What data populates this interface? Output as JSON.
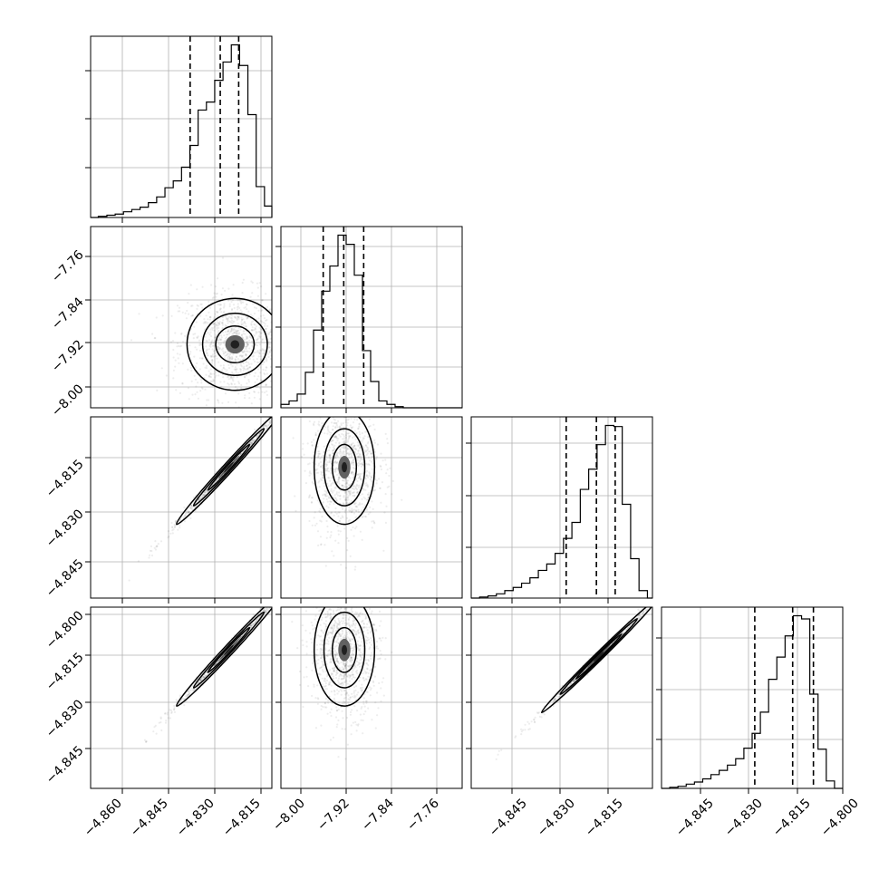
{
  "chart_data": {
    "type": "corner",
    "n_params": 4,
    "grid": true,
    "ranges": [
      [
        -4.869,
        -4.81
      ],
      [
        -8.025,
        -7.725
      ],
      [
        -4.856,
        -4.802
      ],
      [
        -4.856,
        -4.801
      ]
    ],
    "ticks": {
      "row1_y": [
        "−7.76",
        "−7.84",
        "−7.92",
        "−8.00"
      ],
      "row2_y": [
        "−4.815",
        "−4.830",
        "−4.845"
      ],
      "row3_y": [
        "−4.800",
        "−4.815",
        "−4.830",
        "−4.845"
      ],
      "col0_x": [
        "−4.860",
        "−4.845",
        "−4.830",
        "−4.815"
      ],
      "col1_x": [
        "−8.00",
        "−7.92",
        "−7.84",
        "−7.76"
      ],
      "col2_x": [
        "−4.845",
        "−4.830",
        "−4.815"
      ],
      "col3_x": [
        "−4.845",
        "−4.830",
        "−4.815",
        "−4.800"
      ]
    },
    "histograms": [
      {
        "param": 0,
        "quantiles": [
          -4.8366,
          -4.8268,
          -4.8208
        ],
        "bin_edges": [
          -4.869,
          -4.8665,
          -4.8637,
          -4.861,
          -4.8583,
          -4.8556,
          -4.8529,
          -4.8502,
          -4.8475,
          -4.8448,
          -4.8421,
          -4.8394,
          -4.8367,
          -4.834,
          -4.8313,
          -4.8286,
          -4.8259,
          -4.8232,
          -4.8205,
          -4.8178,
          -4.8151,
          -4.8124,
          -4.81
        ],
        "counts": [
          0,
          1,
          2,
          3,
          5,
          7,
          9,
          13,
          18,
          26,
          32,
          44,
          63,
          94,
          101,
          120,
          136,
          151,
          133,
          90,
          27,
          10
        ]
      },
      {
        "param": 1,
        "quantiles": [
          -7.955,
          -7.921,
          -7.888
        ],
        "bin_edges": [
          -8.025,
          -8.0115,
          -7.998,
          -7.9845,
          -7.971,
          -7.9575,
          -7.944,
          -7.9305,
          -7.917,
          -7.9035,
          -7.89,
          -7.8765,
          -7.863,
          -7.8495,
          -7.836,
          -7.8225,
          -7.809,
          -7.7955,
          -7.782,
          -7.7685,
          -7.755,
          -7.7415,
          -7.725
        ],
        "counts": [
          3,
          6,
          12,
          31,
          68,
          102,
          124,
          151,
          143,
          116,
          50,
          23,
          6,
          3,
          1,
          0,
          0,
          0,
          0,
          0,
          0,
          0
        ]
      },
      {
        "param": 2,
        "quantiles": [
          -4.8277,
          -4.8187,
          -4.8131
        ],
        "bin_edges": [
          -4.856,
          -4.8535,
          -4.851,
          -4.8485,
          -4.846,
          -4.8435,
          -4.841,
          -4.8385,
          -4.836,
          -4.8335,
          -4.831,
          -4.8285,
          -4.826,
          -4.8235,
          -4.821,
          -4.8185,
          -4.816,
          -4.8135,
          -4.811,
          -4.8085,
          -4.806,
          -4.8035,
          -4.802
        ],
        "counts": [
          0,
          1,
          2,
          4,
          7,
          10,
          14,
          19,
          26,
          32,
          42,
          56,
          71,
          102,
          121,
          144,
          162,
          161,
          88,
          37,
          7,
          0
        ]
      },
      {
        "param": 3,
        "quantiles": [
          -4.8277,
          -4.8162,
          -4.8099
        ],
        "bin_edges": [
          -4.856,
          -4.8535,
          -4.851,
          -4.8485,
          -4.846,
          -4.8435,
          -4.841,
          -4.8385,
          -4.836,
          -4.8335,
          -4.831,
          -4.8285,
          -4.826,
          -4.8235,
          -4.821,
          -4.8185,
          -4.816,
          -4.8135,
          -4.811,
          -4.8085,
          -4.806,
          -4.8035,
          -4.801
        ],
        "counts": [
          0,
          1,
          2,
          4,
          6,
          9,
          13,
          17,
          22,
          28,
          38,
          52,
          72,
          103,
          124,
          144,
          163,
          160,
          89,
          37,
          7,
          0
        ]
      }
    ],
    "pairs": [
      {
        "row": 1,
        "col": 0,
        "shape": "blob",
        "center": [
          -4.822,
          -7.92
        ],
        "sd": [
          0.0078,
          0.038
        ],
        "rho": 0.0
      },
      {
        "row": 2,
        "col": 0,
        "shape": "line",
        "center": [
          -4.824,
          -4.817
        ],
        "sd": [
          0.0085,
          0.0085
        ],
        "rho": 0.995
      },
      {
        "row": 2,
        "col": 1,
        "shape": "blob",
        "center": [
          -7.92,
          -4.817
        ],
        "sd": [
          0.025,
          0.0085
        ],
        "rho": 0.0
      },
      {
        "row": 3,
        "col": 0,
        "shape": "line",
        "center": [
          -4.824,
          -4.814
        ],
        "sd": [
          0.0085,
          0.0085
        ],
        "rho": 0.995
      },
      {
        "row": 3,
        "col": 1,
        "shape": "blob",
        "center": [
          -7.92,
          -4.814
        ],
        "sd": [
          0.025,
          0.0085
        ],
        "rho": 0.0
      },
      {
        "row": 3,
        "col": 2,
        "shape": "line",
        "center": [
          -4.818,
          -4.816
        ],
        "sd": [
          0.0085,
          0.0085
        ],
        "rho": 0.997
      }
    ]
  }
}
